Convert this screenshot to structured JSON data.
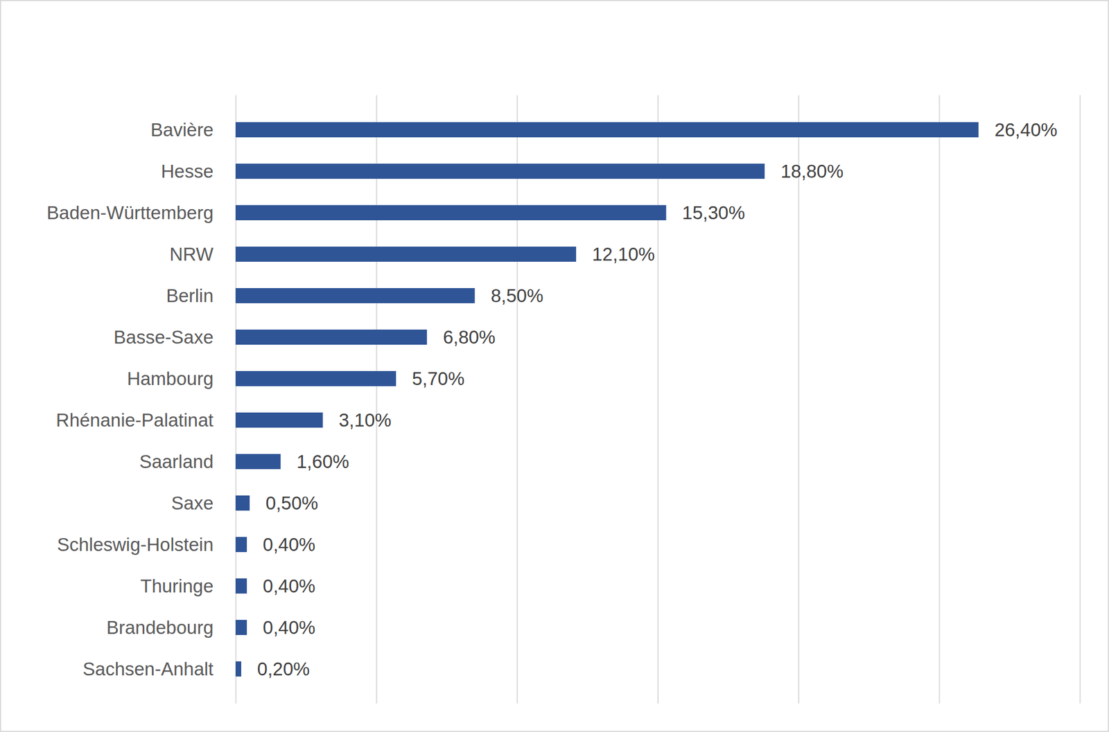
{
  "chart_data": {
    "type": "bar",
    "orientation": "horizontal",
    "categories": [
      "Bavière",
      "Hesse",
      "Baden-Württemberg",
      "NRW",
      "Berlin",
      "Basse-Saxe",
      "Hambourg",
      "Rhénanie-Palatinat",
      "Saarland",
      "Saxe",
      "Schleswig-Holstein",
      "Thuringe",
      "Brandebourg",
      "Sachsen-Anhalt"
    ],
    "values": [
      26.4,
      18.8,
      15.3,
      12.1,
      8.5,
      6.8,
      5.7,
      3.1,
      1.6,
      0.5,
      0.4,
      0.4,
      0.4,
      0.2
    ],
    "value_labels": [
      "26,40%",
      "18,80%",
      "15,30%",
      "12,10%",
      "8,50%",
      "6,80%",
      "5,70%",
      "3,10%",
      "1,60%",
      "0,50%",
      "0,40%",
      "0,40%",
      "0,40%",
      "0,20%"
    ],
    "color": "#2f5597",
    "xlim": [
      0,
      30
    ],
    "xticks": [
      0,
      5,
      10,
      15,
      20,
      25,
      30
    ],
    "grid": true,
    "data_labels": true,
    "tick_labels": false
  }
}
